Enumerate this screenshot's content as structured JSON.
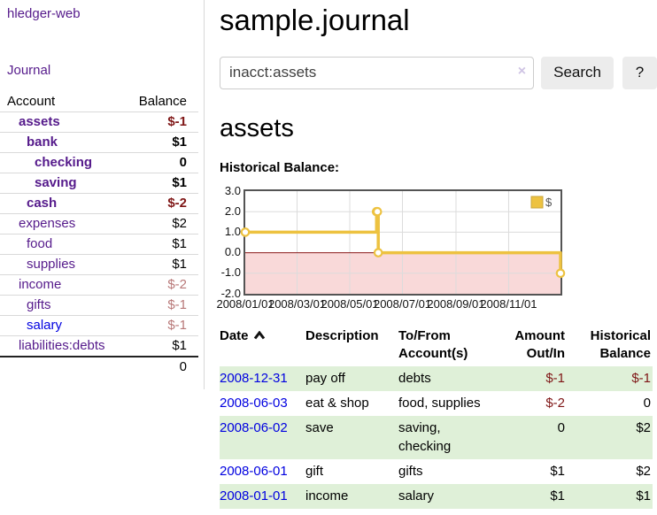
{
  "app": {
    "brand": "hledger-web",
    "nav_journal": "Journal"
  },
  "sidebar": {
    "headers": {
      "account": "Account",
      "balance": "Balance"
    },
    "accounts": [
      {
        "label": "assets",
        "depth": 1,
        "bold": true,
        "link": "visited",
        "balance": "$-1",
        "tone": "neg"
      },
      {
        "label": "bank",
        "depth": 2,
        "bold": true,
        "link": "visited",
        "balance": "$1",
        "tone": "plain"
      },
      {
        "label": "checking",
        "depth": 3,
        "bold": true,
        "link": "visited",
        "balance": "0",
        "tone": "plain"
      },
      {
        "label": "saving",
        "depth": 3,
        "bold": true,
        "link": "visited",
        "balance": "$1",
        "tone": "plain"
      },
      {
        "label": "cash",
        "depth": 2,
        "bold": true,
        "link": "visited",
        "balance": "$-2",
        "tone": "neg"
      },
      {
        "label": "expenses",
        "depth": 1,
        "bold": false,
        "link": "visited",
        "balance": "$2",
        "tone": "plain"
      },
      {
        "label": "food",
        "depth": 2,
        "bold": false,
        "link": "visited",
        "balance": "$1",
        "tone": "plain"
      },
      {
        "label": "supplies",
        "depth": 2,
        "bold": false,
        "link": "visited",
        "balance": "$1",
        "tone": "plain"
      },
      {
        "label": "income",
        "depth": 1,
        "bold": false,
        "link": "visited",
        "balance": "$-2",
        "tone": "neg-soft"
      },
      {
        "label": "gifts",
        "depth": 2,
        "bold": false,
        "link": "visited",
        "balance": "$-1",
        "tone": "neg-soft"
      },
      {
        "label": "salary",
        "depth": 2,
        "bold": false,
        "link": "unvisited",
        "balance": "$-1",
        "tone": "neg-soft"
      },
      {
        "label": "liabilities:debts",
        "depth": 1,
        "bold": false,
        "link": "visited",
        "balance": "$1",
        "tone": "plain"
      }
    ],
    "total": "0"
  },
  "main": {
    "title": "sample.journal",
    "search": {
      "value": "inacct:assets",
      "clear_icon": "×",
      "button_label": "Search",
      "help_label": "?"
    },
    "account_heading": "assets",
    "chart_label": "Historical Balance:"
  },
  "chart_data": {
    "type": "line",
    "step": true,
    "title": "Historical Balance:",
    "series": [
      {
        "name": "$",
        "color": "#edc240",
        "points": [
          [
            "2008-01-01",
            1
          ],
          [
            "2008-06-01",
            2
          ],
          [
            "2008-06-02",
            2
          ],
          [
            "2008-06-03",
            0
          ],
          [
            "2008-12-31",
            -1
          ]
        ]
      }
    ],
    "x_range": [
      "2008-01-01",
      "2008-12-31"
    ],
    "ylim": [
      -2,
      3
    ],
    "y_ticks": [
      "3.0",
      "2.0",
      "1.0",
      "0.0",
      "-1.0",
      "-2.0"
    ],
    "x_ticks": [
      "2008/01/01",
      "2008/03/01",
      "2008/05/01",
      "2008/07/01",
      "2008/09/01",
      "2008/11/01"
    ],
    "grid": true,
    "legend": {
      "label": "$",
      "position": "top-right"
    },
    "negative_region_color": "#f9d9d9",
    "zero_line_color": "#8b1a1a",
    "grid_color": "#dcdcdc"
  },
  "register": {
    "headers": [
      "Date",
      "Description",
      "To/From Account(s)",
      "Amount Out/In",
      "Historical Balance"
    ],
    "rows": [
      {
        "date": "2008-12-31",
        "description": "pay off",
        "accounts": "debts",
        "amount": "$-1",
        "amount_tone": "neg",
        "balance": "$-1",
        "balance_tone": "neg",
        "shaded": true
      },
      {
        "date": "2008-06-03",
        "description": "eat & shop",
        "accounts": "food, supplies",
        "amount": "$-2",
        "amount_tone": "neg",
        "balance": "0",
        "balance_tone": "plain",
        "shaded": false
      },
      {
        "date": "2008-06-02",
        "description": "save",
        "accounts": "saving, checking",
        "amount": "0",
        "amount_tone": "plain",
        "balance": "$2",
        "balance_tone": "plain",
        "shaded": true
      },
      {
        "date": "2008-06-01",
        "description": "gift",
        "accounts": "gifts",
        "amount": "$1",
        "amount_tone": "plain",
        "balance": "$2",
        "balance_tone": "plain",
        "shaded": false
      },
      {
        "date": "2008-01-01",
        "description": "income",
        "accounts": "salary",
        "amount": "$1",
        "amount_tone": "plain",
        "balance": "$1",
        "balance_tone": "plain",
        "shaded": true
      }
    ]
  },
  "colors": {
    "accent_purple": "#551a8b",
    "link_blue": "#0000e0",
    "negative": "#7f1616",
    "negative_soft": "#b87878",
    "row_green": "#dff0d8",
    "series_gold": "#edc240",
    "negative_region": "#f9d9d9",
    "zero_line": "#8b1a1a",
    "chart_border": "#545454",
    "button_bg": "#ececec"
  }
}
